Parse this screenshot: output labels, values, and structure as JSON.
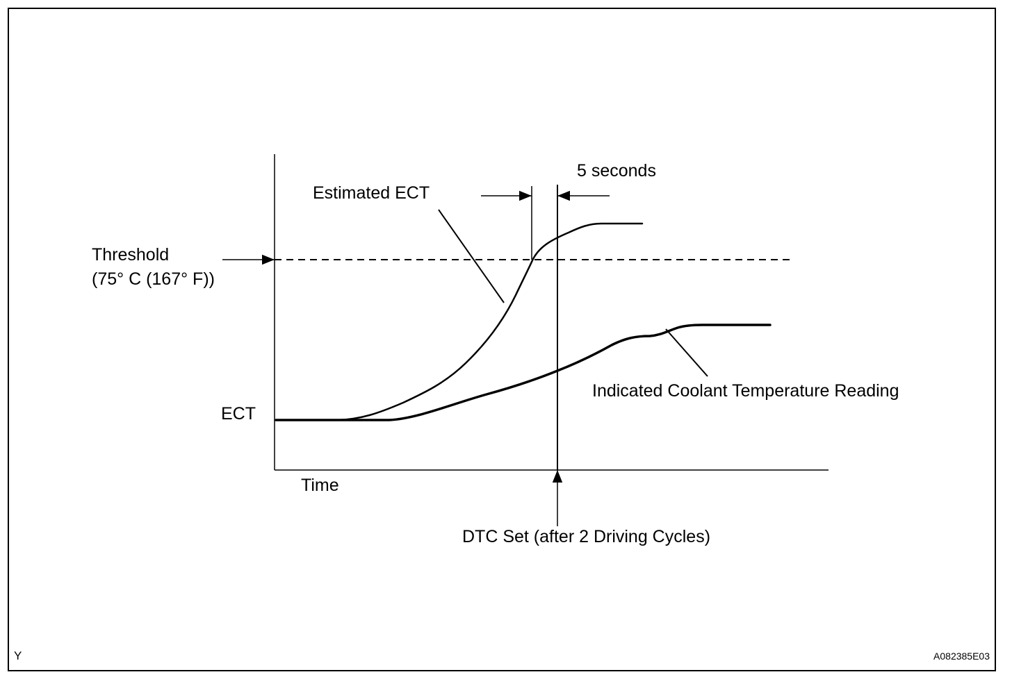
{
  "labels": {
    "threshold_line1": "Threshold",
    "threshold_line2": "(75° C (167° F))",
    "y_axis": "ECT",
    "x_axis": "Time",
    "estimated_ect": "Estimated ECT",
    "five_seconds": "5 seconds",
    "indicated_coolant": "Indicated Coolant Temperature Reading",
    "dtc_set": "DTC Set (after 2 Driving Cycles)",
    "corner_left": "Y",
    "figure_id": "A082385E03"
  },
  "colors": {
    "ink": "#000000",
    "background": "#ffffff"
  }
}
